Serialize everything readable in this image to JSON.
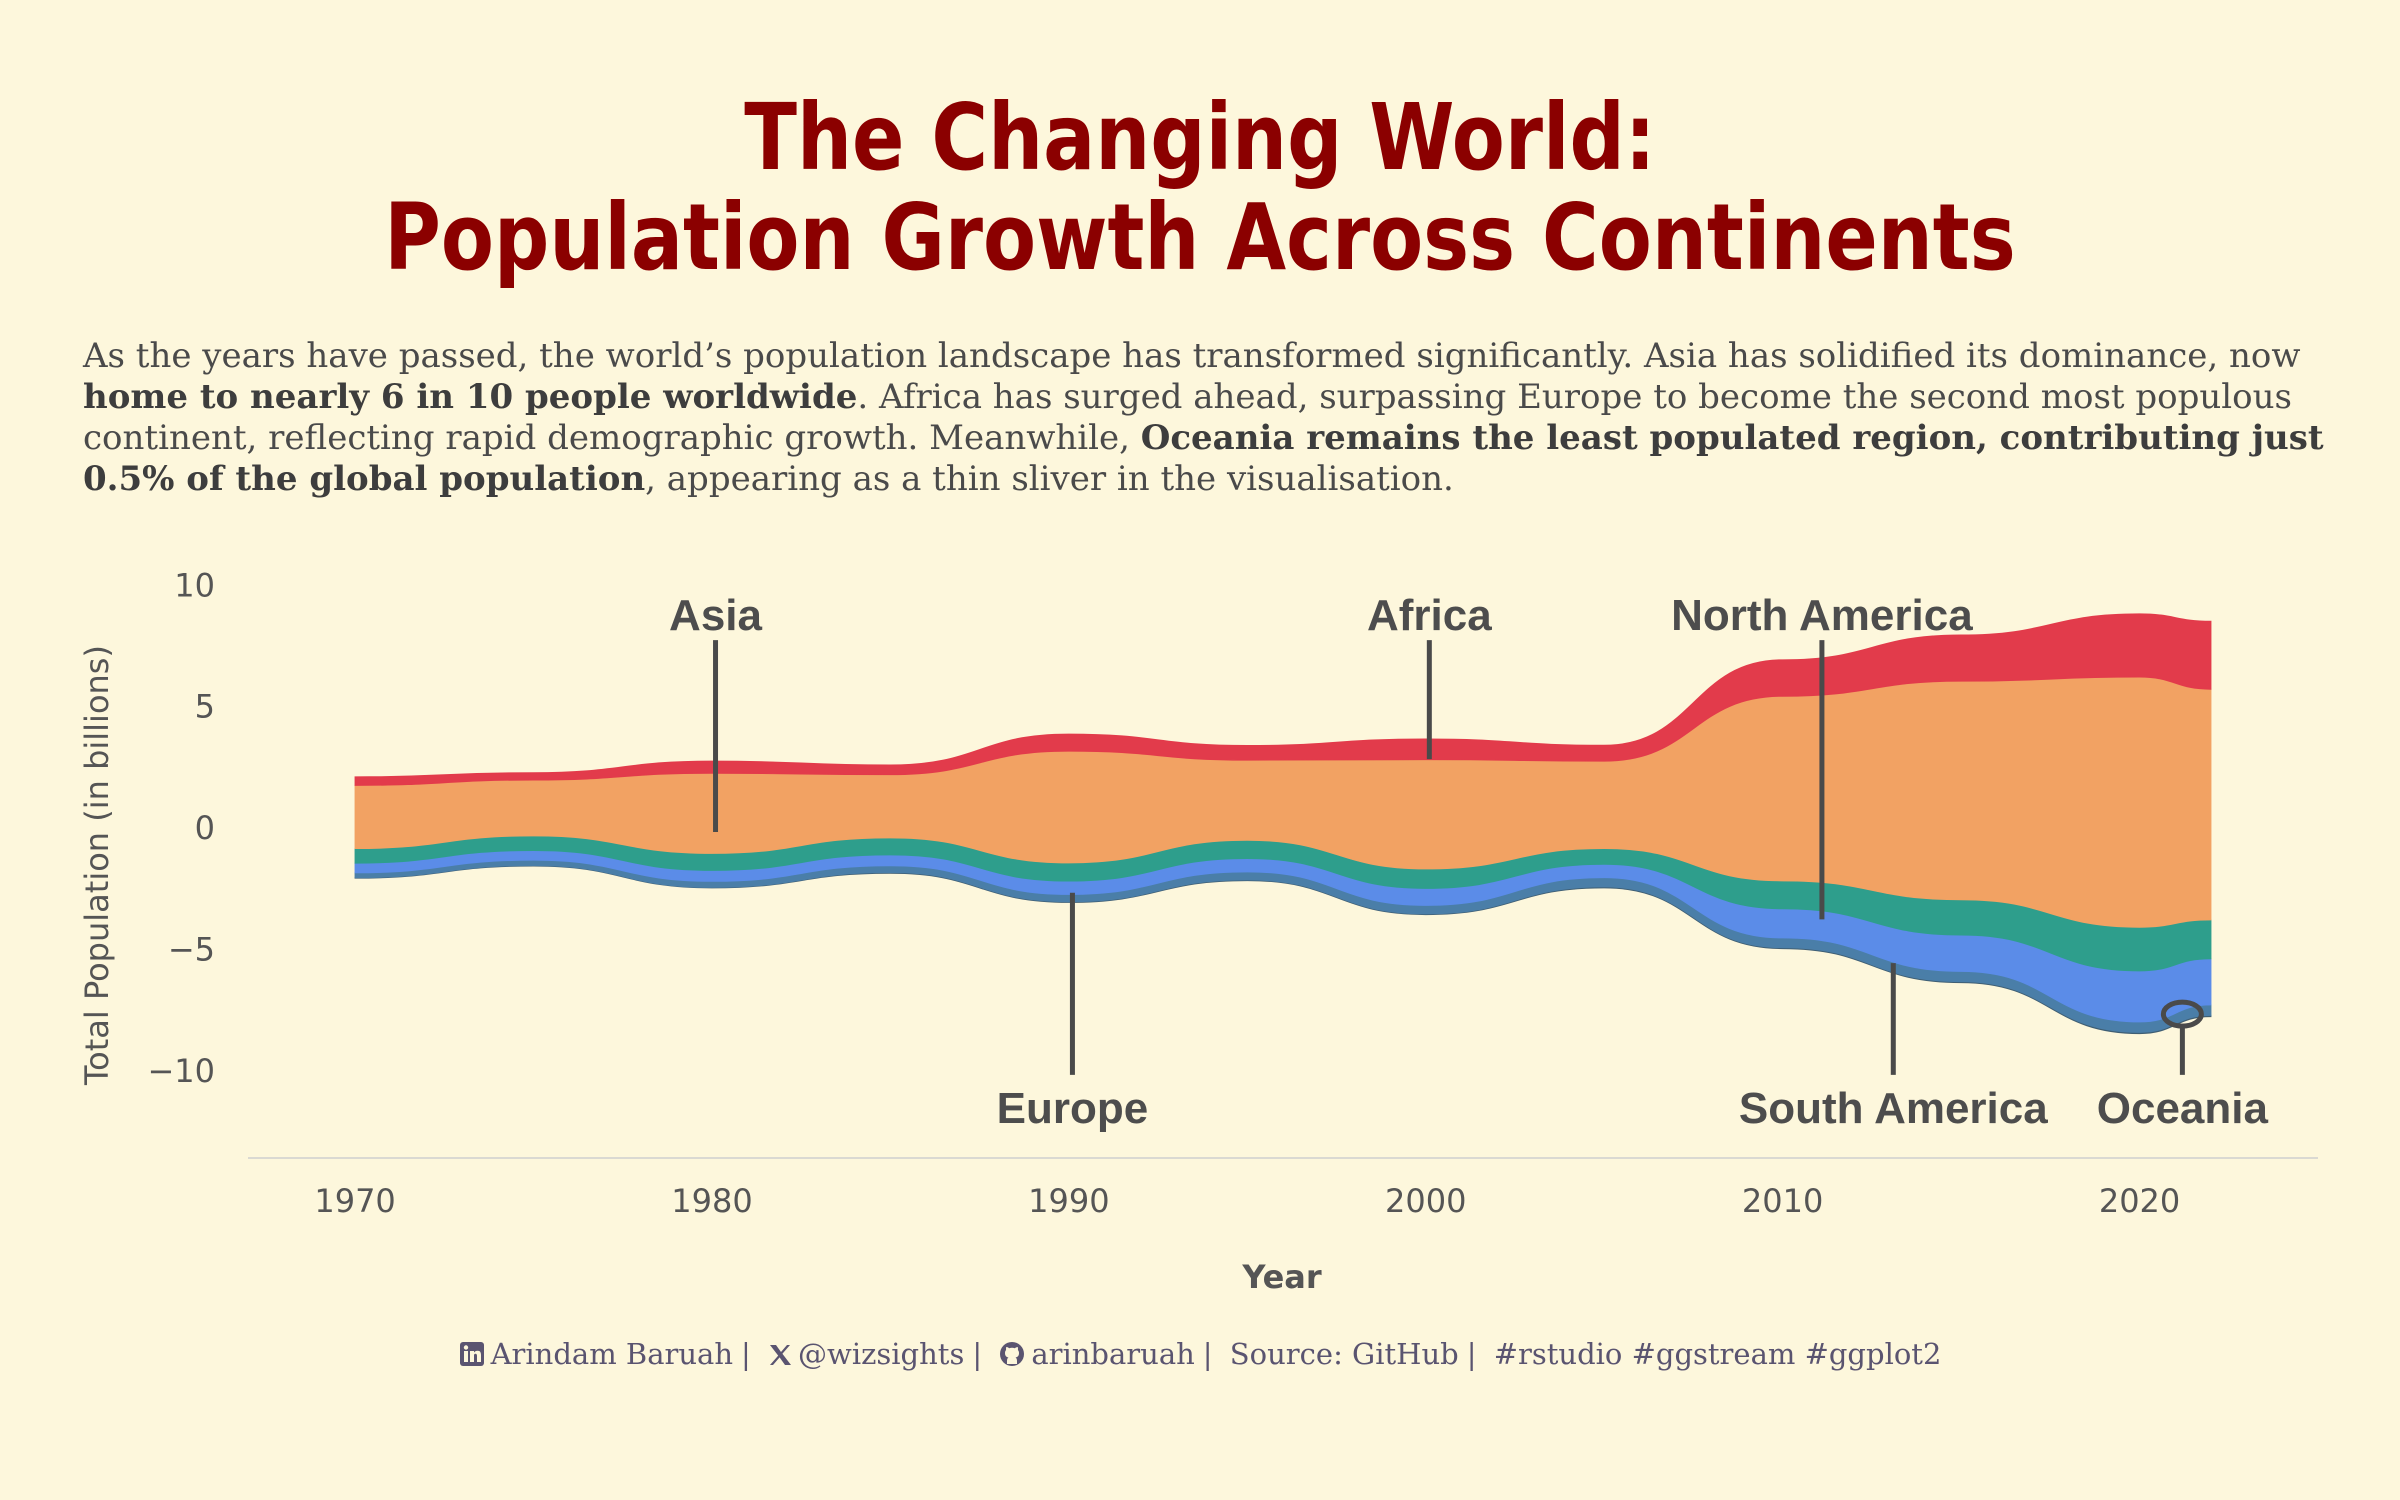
{
  "title": {
    "line1": "The Changing World:",
    "line2": "Population Growth Across Continents"
  },
  "subtitle": {
    "p1": "As the years have passed, the world’s population landscape has transformed significantly. Asia has solidified its dominance, now ",
    "b1": "home to nearly 6 in 10 people worldwide",
    "p2": ". Africa has surged ahead, surpassing Europe to become the second most populous continent, reflecting rapid demographic growth. Meanwhile, ",
    "b2": "Oceania remains the least populated region, contributing just 0.5% of the global population",
    "p3": ", appearing as a thin sliver in the visualisation."
  },
  "caption": {
    "linkedin": "Arindam Baruah",
    "x": "@wizsights",
    "github": "arinbaruah",
    "source": "Source: GitHub",
    "tags": "#rstudio #ggstream #ggplot2",
    "linkedin_icon": "linkedin-icon",
    "x_icon": "x-logo-icon",
    "github_icon": "github-icon"
  },
  "colors": {
    "background": "#fdf7dc",
    "title": "#8b0000"
  },
  "chart_data": {
    "type": "area",
    "variant": "streamgraph",
    "xlabel": "Year",
    "ylabel": "Total Population (in billions)",
    "xlim": [
      1967,
      2025
    ],
    "ylim": [
      -13.5,
      11
    ],
    "x_ticks": [
      1970,
      1980,
      1990,
      2000,
      2010,
      2020
    ],
    "y_ticks": [
      10,
      5,
      0,
      -5,
      -10
    ],
    "grid": false,
    "legend": "none",
    "x": [
      1970,
      1975,
      1980,
      1985,
      1990,
      1995,
      2000,
      2005,
      2010,
      2015,
      2020,
      2022
    ],
    "baseline": [
      -2.1,
      -1.6,
      -2.5,
      -1.9,
      -3.1,
      -2.2,
      -3.6,
      -2.5,
      -5.0,
      -6.4,
      -8.5,
      -7.8
    ],
    "series": [
      {
        "name": "Oceania",
        "color": "#3f5e73",
        "values": [
          0.02,
          0.02,
          0.02,
          0.03,
          0.03,
          0.03,
          0.03,
          0.04,
          0.04,
          0.04,
          0.05,
          0.05
        ]
      },
      {
        "name": "South America",
        "color": "#4a7ea8",
        "values": [
          0.2,
          0.22,
          0.25,
          0.28,
          0.3,
          0.33,
          0.35,
          0.38,
          0.4,
          0.42,
          0.43,
          0.43
        ]
      },
      {
        "name": "Europe",
        "color": "#5b8ce8",
        "values": [
          0.4,
          0.4,
          0.45,
          0.45,
          0.55,
          0.55,
          0.7,
          0.55,
          1.2,
          1.5,
          2.1,
          1.9
        ]
      },
      {
        "name": "North America",
        "color": "#2e9e8c",
        "values": [
          0.6,
          0.6,
          0.7,
          0.7,
          0.75,
          0.75,
          0.8,
          0.65,
          1.15,
          1.45,
          1.8,
          1.6
        ]
      },
      {
        "name": "Asia",
        "color": "#f2a263",
        "values": [
          2.6,
          2.3,
          3.3,
          2.6,
          4.6,
          3.3,
          4.5,
          3.6,
          7.6,
          9.0,
          10.3,
          9.5
        ]
      },
      {
        "name": "Africa",
        "color": "#e23b4b",
        "values": [
          0.35,
          0.3,
          0.5,
          0.4,
          0.7,
          0.6,
          0.85,
          0.65,
          1.5,
          1.9,
          2.6,
          2.8
        ]
      }
    ],
    "annotations": [
      "Asia",
      "Africa",
      "North America",
      "Europe",
      "South America",
      "Oceania"
    ]
  }
}
